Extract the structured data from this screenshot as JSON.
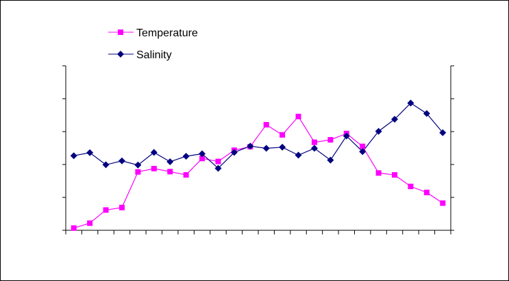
{
  "chart_data": {
    "type": "line",
    "title": "",
    "xlabel": "",
    "ylabel": "",
    "legend_position": "top-left",
    "grid": false,
    "y_tick_labels_shown": false,
    "x_tick_labels_shown": false,
    "x_point_count": 24,
    "ylim": [
      0,
      6
    ],
    "series": [
      {
        "name": "Temperature",
        "color": "#ff00ff",
        "marker": "square",
        "axis": "left",
        "values": [
          0.08,
          0.26,
          0.74,
          0.83,
          2.13,
          2.25,
          2.14,
          2.02,
          2.62,
          2.51,
          2.92,
          3.05,
          3.85,
          3.48,
          4.15,
          3.21,
          3.3,
          3.53,
          3.06,
          2.09,
          2.02,
          1.6,
          1.38,
          0.99
        ]
      },
      {
        "name": "Salinity",
        "color": "#000080",
        "marker": "diamond",
        "axis": "right",
        "values": [
          2.72,
          2.83,
          2.39,
          2.53,
          2.38,
          2.84,
          2.5,
          2.7,
          2.79,
          2.26,
          2.84,
          3.07,
          2.99,
          3.03,
          2.74,
          2.99,
          2.56,
          3.44,
          2.87,
          3.61,
          4.05,
          4.64,
          4.26,
          3.56
        ]
      }
    ]
  }
}
